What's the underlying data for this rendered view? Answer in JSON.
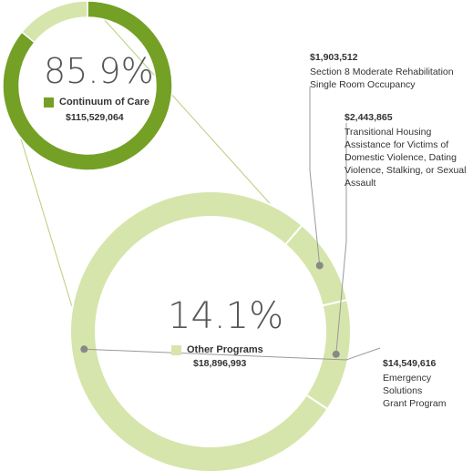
{
  "chart_data": [
    {
      "type": "pie",
      "style": "donut",
      "slices": [
        {
          "label": "Continuum of Care",
          "percent": 85.9,
          "amount": "$115,529,064",
          "color": "#74a025",
          "highlight": true
        },
        {
          "label": "Other Programs",
          "percent": 14.1,
          "amount": "$18,896,993",
          "color": "#d6e5ab",
          "highlight": false
        }
      ],
      "center_percent": "85.9%",
      "legend_label": "Continuum of Care",
      "legend_amount": "$115,529,064",
      "legend_color": "#74a025"
    },
    {
      "type": "pie",
      "style": "donut",
      "title": "",
      "center_percent": "14.1%",
      "legend_label": "Other Programs",
      "legend_amount": "$18,896,993",
      "legend_color": "#d6e5ab",
      "slices": [
        {
          "label": "Section 8 Moderate Rehabilitation Single Room Occupancy",
          "value": 1903512,
          "amount": "$1,903,512"
        },
        {
          "label": "Transitional Housing Assistance for Victims of Domestic Violence, Dating Violence, Stalking, or Sexual Assault",
          "value": 2443865,
          "amount": "$2,443,865"
        },
        {
          "label": "Emergency Solutions Grant Program",
          "value": 14549616,
          "amount": "$14,549,616"
        }
      ],
      "color": "#d6e5ab"
    }
  ],
  "callouts": [
    {
      "value": "$1,903,512",
      "label": "Section 8 Moderate Rehabilitation\nSingle Room Occupancy"
    },
    {
      "value": "$2,443,865",
      "label": "Transitional Housing\nAssistance for Victims of\nDomestic Violence, Dating\nViolence, Stalking, or Sexual\nAssault"
    },
    {
      "value": "$14,549,616",
      "label": "Emergency Solutions\nGrant Program"
    }
  ],
  "colors": {
    "dark_green": "#74a025",
    "light_green": "#d6e5ab",
    "connector": "#b5cf7a",
    "leader": "#999999"
  }
}
